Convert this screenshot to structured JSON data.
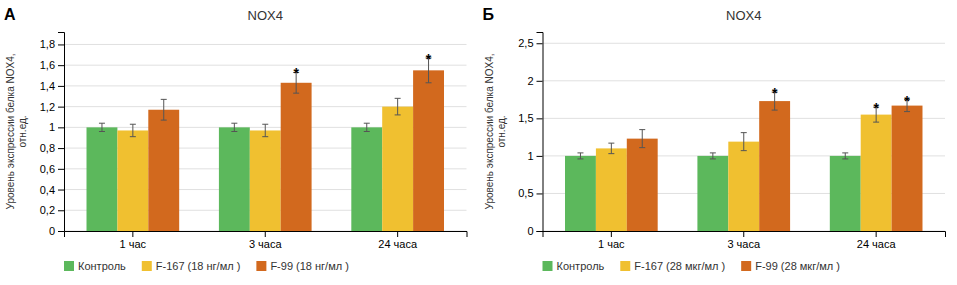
{
  "chart_data": [
    {
      "type": "bar",
      "title": "NOX4",
      "panel_label": "А",
      "categories": [
        "1 час",
        "3 часа",
        "24 часа"
      ],
      "series": [
        {
          "name": "Контроль",
          "color": "#5cb85c",
          "values": [
            1.0,
            1.0,
            1.0
          ],
          "errors": [
            0.04,
            0.04,
            0.04
          ]
        },
        {
          "name": "F-167 (18 нг/мл )",
          "color": "#f0c030",
          "values": [
            0.97,
            0.97,
            1.2
          ],
          "errors": [
            0.06,
            0.06,
            0.08
          ]
        },
        {
          "name": "F-99 (18 нг/мл )",
          "color": "#d2691e",
          "values": [
            1.17,
            1.43,
            1.55
          ],
          "errors": [
            0.1,
            0.1,
            0.12
          ],
          "significant": [
            false,
            true,
            true
          ]
        }
      ],
      "significance_label": "*",
      "ylabel": [
        "Уровень экспрессии белка NOX4,",
        "отн.ед."
      ],
      "ylim": [
        0,
        1.92
      ],
      "yticks": [
        0,
        {
          "value": 0.2,
          "label": "0,2"
        },
        {
          "value": 0.4,
          "label": "0,4"
        },
        {
          "value": 0.6,
          "label": "0,6"
        },
        {
          "value": 0.8,
          "label": "0,8"
        },
        1,
        {
          "value": 1.2,
          "label": "1,2"
        },
        {
          "value": 1.4,
          "label": "1,4"
        },
        {
          "value": 1.6,
          "label": "1,6"
        },
        {
          "value": 1.8,
          "label": "1,8"
        }
      ],
      "grid": true,
      "legend": "bottom"
    },
    {
      "type": "bar",
      "title": "NOX4",
      "panel_label": "Б",
      "categories": [
        "1 час",
        "3 часа",
        "24 часа"
      ],
      "series": [
        {
          "name": "Контроль",
          "color": "#5cb85c",
          "values": [
            1.0,
            1.0,
            1.0
          ],
          "errors": [
            0.04,
            0.04,
            0.04
          ]
        },
        {
          "name": "F-167 (28 мкг/мл )",
          "color": "#f0c030",
          "values": [
            1.1,
            1.19,
            1.55
          ],
          "errors": [
            0.07,
            0.12,
            0.1
          ],
          "significant": [
            false,
            false,
            true
          ]
        },
        {
          "name": "F-99 (28 мкг/мл )",
          "color": "#d2691e",
          "values": [
            1.23,
            1.73,
            1.67
          ],
          "errors": [
            0.12,
            0.12,
            0.08
          ],
          "significant": [
            false,
            true,
            true
          ]
        }
      ],
      "significance_label": "*",
      "ylabel": [
        "Уровень экспрессии белка NOX4,",
        "отн.ед."
      ],
      "ylim": [
        0,
        2.65
      ],
      "yticks": [
        0,
        {
          "value": 0.5,
          "label": "0,5"
        },
        1,
        {
          "value": 1.5,
          "label": "1,5"
        },
        2,
        {
          "value": 2.5,
          "label": "2,5"
        }
      ],
      "grid": true,
      "legend": "bottom"
    }
  ]
}
